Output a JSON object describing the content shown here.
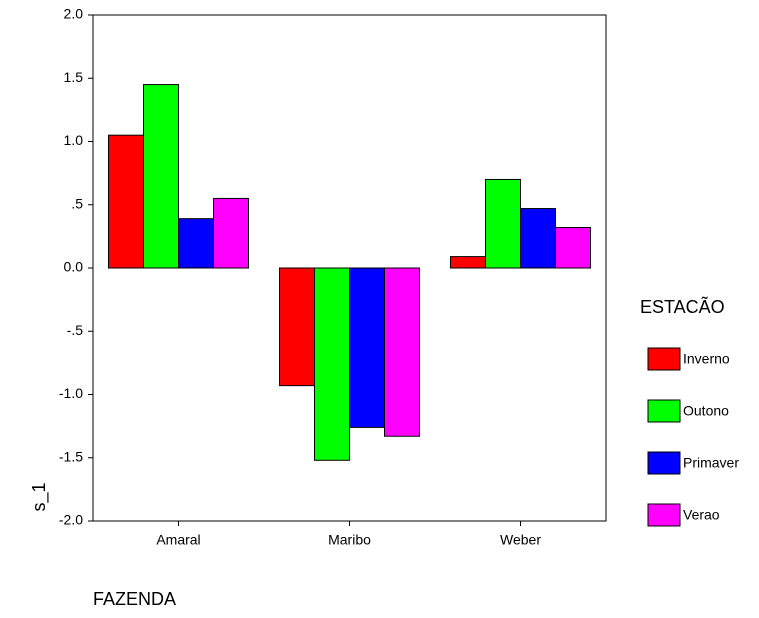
{
  "chart_data": {
    "type": "bar",
    "categories": [
      "Amaral",
      "Maribo",
      "Weber"
    ],
    "series": [
      {
        "name": "Inverno",
        "color": "#ff0000",
        "values": [
          1.05,
          -0.93,
          0.09
        ]
      },
      {
        "name": "Outono",
        "color": "#00ff00",
        "values": [
          1.45,
          -1.52,
          0.7
        ]
      },
      {
        "name": "Primaver",
        "color": "#0000ff",
        "values": [
          0.39,
          -1.26,
          0.47
        ]
      },
      {
        "name": "Verao",
        "color": "#ff00ff",
        "values": [
          0.55,
          -1.33,
          0.32
        ]
      }
    ],
    "ylim": [
      -2,
      2
    ],
    "yticks": [
      {
        "value": 2,
        "label": "2.0"
      },
      1.5,
      {
        "value": 1,
        "label": "1.0"
      },
      {
        "value": 0.5,
        "label": ".5"
      },
      {
        "value": 0,
        "label": "0.0"
      },
      {
        "value": -0.5,
        "label": "-.5"
      },
      {
        "value": -1,
        "label": "-1.0"
      },
      -1.5,
      {
        "value": -2,
        "label": "-2.0"
      }
    ],
    "ylabel": "s_1",
    "xlabel": "FAZENDA",
    "legend_title": "ESTACÃO",
    "legend": "right",
    "grid": false
  }
}
